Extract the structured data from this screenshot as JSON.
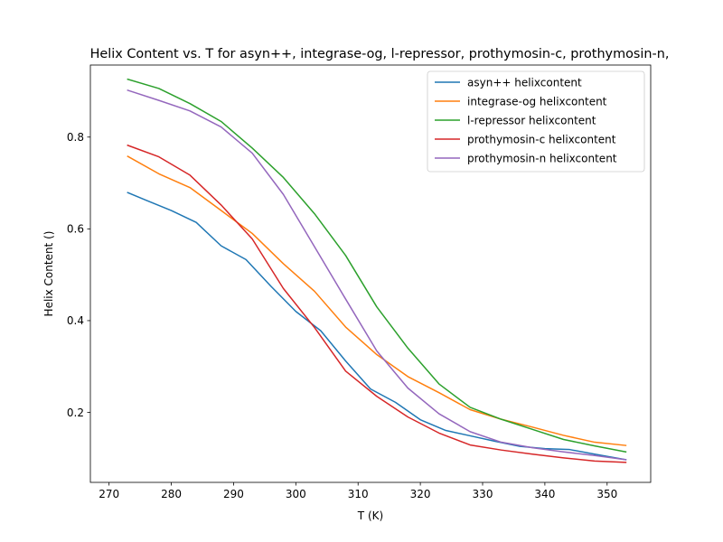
{
  "chart_data": {
    "type": "line",
    "title": "Helix Content vs. T for asyn++, integrase-og, l-repressor, prothymosin-c, prothymosin-n,",
    "xlabel": "T  (K)",
    "ylabel": "Helix Content  ()",
    "xlim": [
      267.0,
      357.0
    ],
    "ylim": [
      0.0475,
      0.957
    ],
    "xticks": [
      270,
      280,
      290,
      300,
      310,
      320,
      330,
      340,
      350
    ],
    "yticks": [
      0.2,
      0.4,
      0.6,
      0.8
    ],
    "xtick_labels": [
      "270",
      "280",
      "290",
      "300",
      "310",
      "320",
      "330",
      "340",
      "350"
    ],
    "ytick_labels": [
      "0.2",
      "0.4",
      "0.6",
      "0.8"
    ],
    "grid": false,
    "legend_position": "top-right",
    "series": [
      {
        "name": "asyn++ helixcontent",
        "color": "#1f77b4",
        "x": [
          273,
          276,
          280,
          284,
          288,
          292,
          296,
          300,
          304,
          308,
          312,
          316,
          320,
          324,
          328,
          332,
          336,
          340,
          344,
          348,
          353
        ],
        "y": [
          0.679,
          0.662,
          0.64,
          0.614,
          0.563,
          0.533,
          0.475,
          0.42,
          0.378,
          0.312,
          0.251,
          0.222,
          0.184,
          0.161,
          0.149,
          0.137,
          0.126,
          0.121,
          0.119,
          0.109,
          0.097
        ]
      },
      {
        "name": "integrase-og helixcontent",
        "color": "#ff7f0e",
        "x": [
          273,
          278,
          283,
          288,
          293,
          298,
          303,
          308,
          313,
          318,
          323,
          328,
          333,
          338,
          343,
          348,
          353
        ],
        "y": [
          0.758,
          0.72,
          0.69,
          0.64,
          0.59,
          0.524,
          0.464,
          0.386,
          0.326,
          0.278,
          0.243,
          0.206,
          0.185,
          0.168,
          0.15,
          0.135,
          0.128
        ]
      },
      {
        "name": "l-repressor helixcontent",
        "color": "#2ca02c",
        "x": [
          273,
          278,
          283,
          288,
          293,
          298,
          303,
          308,
          313,
          318,
          323,
          328,
          333,
          338,
          343,
          348,
          353
        ],
        "y": [
          0.926,
          0.906,
          0.873,
          0.834,
          0.776,
          0.712,
          0.633,
          0.542,
          0.43,
          0.34,
          0.262,
          0.211,
          0.185,
          0.163,
          0.141,
          0.127,
          0.114
        ]
      },
      {
        "name": "prothymosin-c helixcontent",
        "color": "#d62728",
        "x": [
          273,
          278,
          283,
          288,
          293,
          298,
          303,
          308,
          313,
          318,
          323,
          328,
          333,
          338,
          343,
          348,
          353
        ],
        "y": [
          0.782,
          0.757,
          0.717,
          0.652,
          0.578,
          0.47,
          0.385,
          0.29,
          0.235,
          0.19,
          0.155,
          0.129,
          0.118,
          0.109,
          0.101,
          0.094,
          0.091
        ]
      },
      {
        "name": "prothymosin-n helixcontent",
        "color": "#9467bd",
        "x": [
          273,
          278,
          283,
          288,
          293,
          298,
          303,
          308,
          313,
          318,
          323,
          328,
          333,
          338,
          343,
          348,
          353
        ],
        "y": [
          0.902,
          0.88,
          0.857,
          0.822,
          0.765,
          0.675,
          0.561,
          0.447,
          0.334,
          0.253,
          0.197,
          0.158,
          0.135,
          0.123,
          0.114,
          0.106,
          0.097
        ]
      }
    ]
  }
}
